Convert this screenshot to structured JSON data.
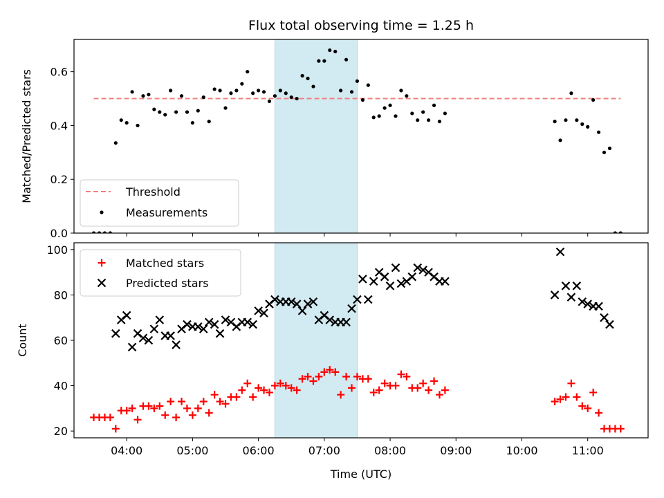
{
  "title": "Flux total observing time = 1.25 h",
  "colors": {
    "threshold": "#f08080",
    "measurements": "#000000",
    "matched": "#ff0000",
    "predicted": "#000000",
    "band": "#add8e6"
  },
  "chart_data": [
    {
      "type": "scatter",
      "panel": "top",
      "ylabel": "Matched/Predicted stars",
      "xlabel": "",
      "ylim": [
        0,
        0.72
      ],
      "xlim": [
        "03:12",
        "11:55"
      ],
      "yticks": [
        "0.0",
        "0.2",
        "0.4",
        "0.6"
      ],
      "shaded_span": [
        "06:15",
        "07:30"
      ],
      "legend_position": "lower-left",
      "threshold": {
        "name": "Threshold",
        "y": 0.5,
        "x_range": [
          "03:30",
          "11:30"
        ],
        "style": "dashed"
      },
      "series": [
        {
          "name": "Measurements",
          "marker": "dot",
          "points": [
            [
              "03:30",
              0.0
            ],
            [
              "03:35",
              0.0
            ],
            [
              "03:40",
              0.0
            ],
            [
              "03:45",
              0.0
            ],
            [
              "03:50",
              0.335
            ],
            [
              "03:55",
              0.42
            ],
            [
              "04:00",
              0.41
            ],
            [
              "04:05",
              0.525
            ],
            [
              "04:10",
              0.4
            ],
            [
              "04:15",
              0.51
            ],
            [
              "04:20",
              0.515
            ],
            [
              "04:25",
              0.46
            ],
            [
              "04:30",
              0.45
            ],
            [
              "04:35",
              0.44
            ],
            [
              "04:40",
              0.53
            ],
            [
              "04:45",
              0.45
            ],
            [
              "04:50",
              0.51
            ],
            [
              "04:55",
              0.45
            ],
            [
              "05:00",
              0.41
            ],
            [
              "05:05",
              0.455
            ],
            [
              "05:10",
              0.505
            ],
            [
              "05:15",
              0.415
            ],
            [
              "05:20",
              0.535
            ],
            [
              "05:25",
              0.53
            ],
            [
              "05:30",
              0.465
            ],
            [
              "05:35",
              0.52
            ],
            [
              "05:40",
              0.53
            ],
            [
              "05:45",
              0.555
            ],
            [
              "05:50",
              0.6
            ],
            [
              "05:55",
              0.52
            ],
            [
              "06:00",
              0.53
            ],
            [
              "06:05",
              0.525
            ],
            [
              "06:10",
              0.49
            ],
            [
              "06:15",
              0.51
            ],
            [
              "06:20",
              0.53
            ],
            [
              "06:25",
              0.52
            ],
            [
              "06:30",
              0.505
            ],
            [
              "06:35",
              0.5
            ],
            [
              "06:40",
              0.585
            ],
            [
              "06:45",
              0.575
            ],
            [
              "06:50",
              0.545
            ],
            [
              "06:55",
              0.64
            ],
            [
              "07:00",
              0.64
            ],
            [
              "07:05",
              0.68
            ],
            [
              "07:10",
              0.675
            ],
            [
              "07:15",
              0.53
            ],
            [
              "07:20",
              0.645
            ],
            [
              "07:25",
              0.525
            ],
            [
              "07:30",
              0.565
            ],
            [
              "07:35",
              0.495
            ],
            [
              "07:40",
              0.55
            ],
            [
              "07:45",
              0.43
            ],
            [
              "07:50",
              0.435
            ],
            [
              "07:55",
              0.465
            ],
            [
              "08:00",
              0.475
            ],
            [
              "08:05",
              0.435
            ],
            [
              "08:10",
              0.53
            ],
            [
              "08:15",
              0.51
            ],
            [
              "08:20",
              0.445
            ],
            [
              "08:25",
              0.42
            ],
            [
              "08:30",
              0.45
            ],
            [
              "08:35",
              0.42
            ],
            [
              "08:40",
              0.475
            ],
            [
              "08:45",
              0.415
            ],
            [
              "08:50",
              0.445
            ],
            [
              "10:30",
              0.415
            ],
            [
              "10:35",
              0.345
            ],
            [
              "10:40",
              0.42
            ],
            [
              "10:45",
              0.52
            ],
            [
              "10:50",
              0.42
            ],
            [
              "10:55",
              0.405
            ],
            [
              "11:00",
              0.395
            ],
            [
              "11:05",
              0.495
            ],
            [
              "11:10",
              0.375
            ],
            [
              "11:15",
              0.3
            ],
            [
              "11:20",
              0.315
            ],
            [
              "11:25",
              0.0
            ],
            [
              "11:30",
              0.0
            ]
          ]
        }
      ]
    },
    {
      "type": "scatter",
      "panel": "bottom",
      "ylabel": "Count",
      "xlabel": "Time (UTC)",
      "ylim": [
        17,
        103
      ],
      "xlim": [
        "03:12",
        "11:55"
      ],
      "yticks": [
        "20",
        "40",
        "60",
        "80",
        "100"
      ],
      "xticks": [
        "04:00",
        "05:00",
        "06:00",
        "07:00",
        "08:00",
        "09:00",
        "10:00",
        "11:00"
      ],
      "shaded_span": [
        "06:15",
        "07:30"
      ],
      "legend_position": "upper-left",
      "series": [
        {
          "name": "Matched stars",
          "marker": "plus",
          "points": [
            [
              "03:30",
              26
            ],
            [
              "03:35",
              26
            ],
            [
              "03:40",
              26
            ],
            [
              "03:45",
              26
            ],
            [
              "03:50",
              21
            ],
            [
              "03:55",
              29
            ],
            [
              "04:00",
              29
            ],
            [
              "04:05",
              30
            ],
            [
              "04:10",
              25
            ],
            [
              "04:15",
              31
            ],
            [
              "04:20",
              31
            ],
            [
              "04:25",
              30
            ],
            [
              "04:30",
              31
            ],
            [
              "04:35",
              27
            ],
            [
              "04:40",
              33
            ],
            [
              "04:45",
              26
            ],
            [
              "04:50",
              33
            ],
            [
              "04:55",
              30
            ],
            [
              "05:00",
              27
            ],
            [
              "05:05",
              30
            ],
            [
              "05:10",
              33
            ],
            [
              "05:15",
              28
            ],
            [
              "05:20",
              36
            ],
            [
              "05:25",
              33
            ],
            [
              "05:30",
              32
            ],
            [
              "05:35",
              35
            ],
            [
              "05:40",
              35
            ],
            [
              "05:45",
              38
            ],
            [
              "05:50",
              41
            ],
            [
              "05:55",
              35
            ],
            [
              "06:00",
              39
            ],
            [
              "06:05",
              38
            ],
            [
              "06:10",
              37
            ],
            [
              "06:15",
              40
            ],
            [
              "06:20",
              41
            ],
            [
              "06:25",
              40
            ],
            [
              "06:30",
              39
            ],
            [
              "06:35",
              38
            ],
            [
              "06:40",
              43
            ],
            [
              "06:45",
              44
            ],
            [
              "06:50",
              42
            ],
            [
              "06:55",
              44
            ],
            [
              "07:00",
              46
            ],
            [
              "07:05",
              47
            ],
            [
              "07:10",
              46
            ],
            [
              "07:15",
              36
            ],
            [
              "07:20",
              44
            ],
            [
              "07:25",
              39
            ],
            [
              "07:30",
              44
            ],
            [
              "07:35",
              43
            ],
            [
              "07:40",
              43
            ],
            [
              "07:45",
              37
            ],
            [
              "07:50",
              38
            ],
            [
              "07:55",
              41
            ],
            [
              "08:00",
              40
            ],
            [
              "08:05",
              40
            ],
            [
              "08:10",
              45
            ],
            [
              "08:15",
              44
            ],
            [
              "08:20",
              39
            ],
            [
              "08:25",
              39
            ],
            [
              "08:30",
              41
            ],
            [
              "08:35",
              38
            ],
            [
              "08:40",
              42
            ],
            [
              "08:45",
              36
            ],
            [
              "08:50",
              38
            ],
            [
              "10:30",
              33
            ],
            [
              "10:35",
              34
            ],
            [
              "10:40",
              35
            ],
            [
              "10:45",
              41
            ],
            [
              "10:50",
              35
            ],
            [
              "10:55",
              31
            ],
            [
              "11:00",
              30
            ],
            [
              "11:05",
              37
            ],
            [
              "11:10",
              28
            ],
            [
              "11:15",
              21
            ],
            [
              "11:20",
              21
            ],
            [
              "11:25",
              21
            ],
            [
              "11:30",
              21
            ]
          ]
        },
        {
          "name": "Predicted stars",
          "marker": "x",
          "points": [
            [
              "03:50",
              63
            ],
            [
              "03:55",
              69
            ],
            [
              "04:00",
              71
            ],
            [
              "04:05",
              57
            ],
            [
              "04:10",
              63
            ],
            [
              "04:15",
              61
            ],
            [
              "04:20",
              60
            ],
            [
              "04:25",
              65
            ],
            [
              "04:30",
              69
            ],
            [
              "04:35",
              62
            ],
            [
              "04:40",
              62
            ],
            [
              "04:45",
              58
            ],
            [
              "04:50",
              65
            ],
            [
              "04:55",
              67
            ],
            [
              "05:00",
              66
            ],
            [
              "05:05",
              66
            ],
            [
              "05:10",
              65
            ],
            [
              "05:15",
              68
            ],
            [
              "05:20",
              67
            ],
            [
              "05:25",
              63
            ],
            [
              "05:30",
              69
            ],
            [
              "05:35",
              68
            ],
            [
              "05:40",
              66
            ],
            [
              "05:45",
              68
            ],
            [
              "05:50",
              68
            ],
            [
              "05:55",
              67
            ],
            [
              "06:00",
              73
            ],
            [
              "06:05",
              72
            ],
            [
              "06:10",
              76
            ],
            [
              "06:15",
              78
            ],
            [
              "06:20",
              77
            ],
            [
              "06:25",
              77
            ],
            [
              "06:30",
              77
            ],
            [
              "06:35",
              76
            ],
            [
              "06:40",
              73
            ],
            [
              "06:45",
              76
            ],
            [
              "06:50",
              77
            ],
            [
              "06:55",
              69
            ],
            [
              "07:00",
              71
            ],
            [
              "07:05",
              69
            ],
            [
              "07:10",
              68
            ],
            [
              "07:15",
              68
            ],
            [
              "07:20",
              68
            ],
            [
              "07:25",
              74
            ],
            [
              "07:30",
              78
            ],
            [
              "07:35",
              87
            ],
            [
              "07:40",
              78
            ],
            [
              "07:45",
              86
            ],
            [
              "07:50",
              90
            ],
            [
              "07:55",
              88
            ],
            [
              "08:00",
              84
            ],
            [
              "08:05",
              92
            ],
            [
              "08:10",
              85
            ],
            [
              "08:15",
              86
            ],
            [
              "08:20",
              88
            ],
            [
              "08:25",
              92
            ],
            [
              "08:30",
              91
            ],
            [
              "08:35",
              90
            ],
            [
              "08:40",
              88
            ],
            [
              "08:45",
              86
            ],
            [
              "08:50",
              86
            ],
            [
              "10:30",
              80
            ],
            [
              "10:35",
              99
            ],
            [
              "10:40",
              84
            ],
            [
              "10:45",
              79
            ],
            [
              "10:50",
              84
            ],
            [
              "10:55",
              77
            ],
            [
              "11:00",
              76
            ],
            [
              "11:05",
              75
            ],
            [
              "11:10",
              75
            ],
            [
              "11:15",
              70
            ],
            [
              "11:20",
              67
            ]
          ]
        }
      ]
    }
  ]
}
